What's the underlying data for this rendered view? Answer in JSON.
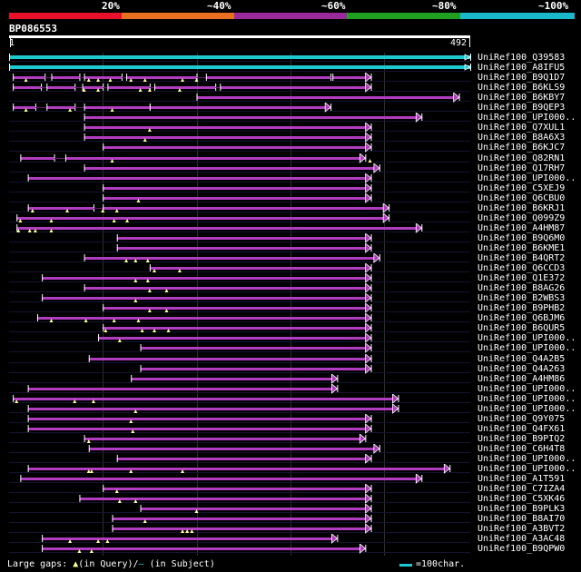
{
  "header": {
    "percent_labels": [
      "20%",
      "~40%",
      "~60%",
      "~80%",
      "~100%"
    ],
    "scale_colors": [
      "#e8102a",
      "#e87020",
      "#9a2a9a",
      "#20a020",
      "#1ab8c8"
    ],
    "query_name": "BP086553",
    "query_start": "1",
    "query_end": "492"
  },
  "colors": {
    "hit": "#b23cbf",
    "ref": "#1ec8d0",
    "gap": "#ffff99",
    "grid": "#2f2f2f"
  },
  "hits": [
    {
      "label": "UniRef100_Q39583",
      "kind": "ref",
      "segments": [
        [
          0,
          492
        ]
      ],
      "gaps": []
    },
    {
      "label": "UniRef100_A8IFU5",
      "kind": "ref",
      "segments": [
        [
          0,
          492
        ]
      ],
      "gaps": []
    },
    {
      "label": "UniRef100_B9Q1D7",
      "kind": "hit",
      "segments": [
        [
          4,
          38
        ],
        [
          45,
          75
        ],
        [
          80,
          120
        ],
        [
          125,
          200
        ],
        [
          210,
          343
        ],
        [
          345,
          386
        ]
      ],
      "gaps": [
        18,
        85,
        95,
        108,
        130,
        145,
        185,
        200
      ]
    },
    {
      "label": "UniRef100_B6KLS9",
      "kind": "hit",
      "segments": [
        [
          4,
          34
        ],
        [
          40,
          70
        ],
        [
          78,
          100
        ],
        [
          105,
          150
        ],
        [
          155,
          220
        ],
        [
          225,
          386
        ]
      ],
      "gaps": [
        80,
        95,
        140,
        150,
        182
      ]
    },
    {
      "label": "UniRef100_B6KBY7",
      "kind": "hit",
      "segments": [
        [
          200,
          480
        ]
      ],
      "gaps": []
    },
    {
      "label": "UniRef100_B9QEP3",
      "kind": "hit",
      "segments": [
        [
          4,
          28
        ],
        [
          40,
          70
        ],
        [
          80,
          150
        ],
        [
          150,
          343
        ]
      ],
      "gaps": [
        18,
        65,
        110
      ]
    },
    {
      "label": "UniRef100_UPI000..",
      "kind": "hit",
      "segments": [
        [
          80,
          440
        ]
      ],
      "gaps": []
    },
    {
      "label": "UniRef100_Q7XUL1",
      "kind": "hit",
      "segments": [
        [
          80,
          386
        ]
      ],
      "gaps": [
        150
      ]
    },
    {
      "label": "UniRef100_B8A6X3",
      "kind": "hit",
      "segments": [
        [
          80,
          386
        ]
      ],
      "gaps": [
        145
      ]
    },
    {
      "label": "UniRef100_B6KJC7",
      "kind": "hit",
      "segments": [
        [
          100,
          386
        ]
      ],
      "gaps": []
    },
    {
      "label": "UniRef100_Q82RN1",
      "kind": "hit",
      "segments": [
        [
          12,
          48
        ],
        [
          60,
          380
        ]
      ],
      "gaps": [
        110,
        385
      ]
    },
    {
      "label": "UniRef100_Q17RH7",
      "kind": "hit",
      "segments": [
        [
          80,
          395
        ]
      ],
      "gaps": []
    },
    {
      "label": "UniRef100_UPI000..",
      "kind": "hit",
      "segments": [
        [
          20,
          386
        ]
      ],
      "gaps": []
    },
    {
      "label": "UniRef100_C5XEJ9",
      "kind": "hit",
      "segments": [
        [
          100,
          386
        ]
      ],
      "gaps": []
    },
    {
      "label": "UniRef100_Q6CBU0",
      "kind": "hit",
      "segments": [
        [
          100,
          386
        ]
      ],
      "gaps": [
        138
      ]
    },
    {
      "label": "UniRef100_B6KRJ1",
      "kind": "hit",
      "segments": [
        [
          20,
          90
        ],
        [
          100,
          405
        ]
      ],
      "gaps": [
        25,
        62,
        100,
        115
      ]
    },
    {
      "label": "UniRef100_Q099Z9",
      "kind": "hit",
      "segments": [
        [
          8,
          405
        ]
      ],
      "gaps": [
        12,
        45,
        112,
        126
      ]
    },
    {
      "label": "UniRef100_A4HM87",
      "kind": "hit",
      "segments": [
        [
          8,
          440
        ]
      ],
      "gaps": [
        10,
        22,
        28,
        45
      ]
    },
    {
      "label": "UniRef100_B9Q6M0",
      "kind": "hit",
      "segments": [
        [
          115,
          386
        ]
      ],
      "gaps": []
    },
    {
      "label": "UniRef100_B6KME1",
      "kind": "hit",
      "segments": [
        [
          115,
          386
        ]
      ],
      "gaps": []
    },
    {
      "label": "UniRef100_B4QRT2",
      "kind": "hit",
      "segments": [
        [
          80,
          395
        ]
      ],
      "gaps": [
        125,
        135,
        148
      ]
    },
    {
      "label": "UniRef100_Q6CCD3",
      "kind": "hit",
      "segments": [
        [
          150,
          386
        ]
      ],
      "gaps": [
        155,
        182
      ]
    },
    {
      "label": "UniRef100_Q1E372",
      "kind": "hit",
      "segments": [
        [
          35,
          386
        ]
      ],
      "gaps": [
        135,
        148
      ]
    },
    {
      "label": "UniRef100_B8AG26",
      "kind": "hit",
      "segments": [
        [
          80,
          386
        ]
      ],
      "gaps": [
        150,
        168
      ]
    },
    {
      "label": "UniRef100_B2WBS3",
      "kind": "hit",
      "segments": [
        [
          35,
          386
        ]
      ],
      "gaps": [
        135
      ]
    },
    {
      "label": "UniRef100_B9PHB2",
      "kind": "hit",
      "segments": [
        [
          100,
          386
        ]
      ],
      "gaps": [
        150,
        168
      ]
    },
    {
      "label": "UniRef100_Q6BJM6",
      "kind": "hit",
      "segments": [
        [
          30,
          386
        ]
      ],
      "gaps": [
        45,
        82,
        112,
        138
      ]
    },
    {
      "label": "UniRef100_B6QUR5",
      "kind": "hit",
      "segments": [
        [
          100,
          386
        ]
      ],
      "gaps": [
        103,
        142,
        155,
        170
      ]
    },
    {
      "label": "UniRef100_UPI000..",
      "kind": "hit",
      "segments": [
        [
          95,
          386
        ]
      ],
      "gaps": [
        118
      ]
    },
    {
      "label": "UniRef100_UPI000..",
      "kind": "hit",
      "segments": [
        [
          140,
          386
        ]
      ],
      "gaps": []
    },
    {
      "label": "UniRef100_Q4A2B5",
      "kind": "hit",
      "segments": [
        [
          85,
          386
        ]
      ],
      "gaps": []
    },
    {
      "label": "UniRef100_Q4A263",
      "kind": "hit",
      "segments": [
        [
          140,
          386
        ]
      ],
      "gaps": []
    },
    {
      "label": "UniRef100_A4HM86",
      "kind": "hit",
      "segments": [
        [
          130,
          350
        ]
      ],
      "gaps": []
    },
    {
      "label": "UniRef100_UPI000..",
      "kind": "hit",
      "segments": [
        [
          20,
          350
        ]
      ],
      "gaps": []
    },
    {
      "label": "UniRef100_UPI000..",
      "kind": "hit",
      "segments": [
        [
          4,
          415
        ]
      ],
      "gaps": [
        8,
        70,
        90
      ]
    },
    {
      "label": "UniRef100_UPI000..",
      "kind": "hit",
      "segments": [
        [
          20,
          415
        ]
      ],
      "gaps": [
        135
      ]
    },
    {
      "label": "UniRef100_Q9Y075",
      "kind": "hit",
      "segments": [
        [
          20,
          386
        ]
      ],
      "gaps": [
        130
      ]
    },
    {
      "label": "UniRef100_Q4FX61",
      "kind": "hit",
      "segments": [
        [
          20,
          386
        ]
      ],
      "gaps": [
        132
      ]
    },
    {
      "label": "UniRef100_B9PIQ2",
      "kind": "hit",
      "segments": [
        [
          80,
          380
        ]
      ],
      "gaps": [
        85
      ]
    },
    {
      "label": "UniRef100_C6H4T8",
      "kind": "hit",
      "segments": [
        [
          85,
          395
        ]
      ],
      "gaps": []
    },
    {
      "label": "UniRef100_UPI000..",
      "kind": "hit",
      "segments": [
        [
          115,
          386
        ]
      ],
      "gaps": []
    },
    {
      "label": "UniRef100_UPI000..",
      "kind": "hit",
      "segments": [
        [
          20,
          470
        ]
      ],
      "gaps": [
        85,
        88,
        130,
        185
      ]
    },
    {
      "label": "UniRef100_A1T591",
      "kind": "hit",
      "segments": [
        [
          12,
          440
        ]
      ],
      "gaps": []
    },
    {
      "label": "UniRef100_C7IZA4",
      "kind": "hit",
      "segments": [
        [
          100,
          386
        ]
      ],
      "gaps": [
        115
      ]
    },
    {
      "label": "UniRef100_C5XK46",
      "kind": "hit",
      "segments": [
        [
          75,
          386
        ]
      ],
      "gaps": [
        118,
        135
      ]
    },
    {
      "label": "UniRef100_B9PLK3",
      "kind": "hit",
      "segments": [
        [
          140,
          386
        ]
      ],
      "gaps": [
        200
      ]
    },
    {
      "label": "UniRef100_B8AI70",
      "kind": "hit",
      "segments": [
        [
          110,
          386
        ]
      ],
      "gaps": [
        145
      ]
    },
    {
      "label": "UniRef100_A3BVT2",
      "kind": "hit",
      "segments": [
        [
          110,
          386
        ]
      ],
      "gaps": [
        185,
        190,
        195
      ]
    },
    {
      "label": "UniRef100_A3AC48",
      "kind": "hit",
      "segments": [
        [
          35,
          350
        ]
      ],
      "gaps": [
        65,
        95,
        105
      ]
    },
    {
      "label": "UniRef100_B9QPW0",
      "kind": "hit",
      "segments": [
        [
          35,
          380
        ]
      ],
      "gaps": [
        75,
        88
      ]
    }
  ],
  "footer": {
    "legend_left": "Large gaps:",
    "legend_query": "(in Query)/",
    "legend_subject": "(in Subject)",
    "scale_label": "=100char."
  }
}
